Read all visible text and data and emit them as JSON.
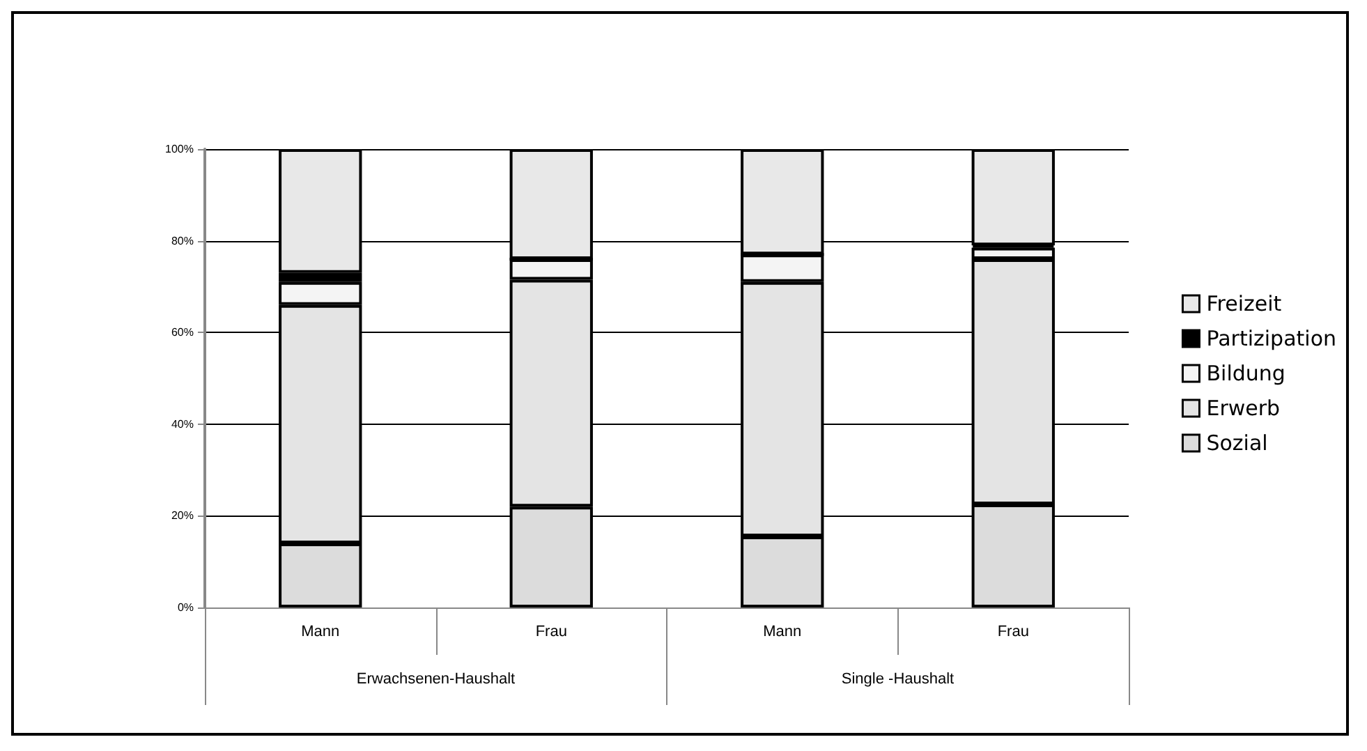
{
  "chart_data": {
    "type": "bar",
    "stacked": true,
    "categories": [
      "Mann",
      "Frau",
      "Mann",
      "Frau"
    ],
    "annotations": [
      "Erwachsenen-Haushalt",
      "Single -Haushalt"
    ],
    "series": [
      {
        "name": "Sozial",
        "color": "#dcdcdc",
        "values": [
          14,
          22,
          15.5,
          22.5
        ]
      },
      {
        "name": "Erwerb",
        "color": "#e4e4e4",
        "values": [
          52,
          49.5,
          55.5,
          53.5
        ]
      },
      {
        "name": "Bildung",
        "color": "#f4f4f4",
        "values": [
          5,
          4.5,
          6,
          2.5
        ]
      },
      {
        "name": "Partizipation",
        "color": "#000000",
        "values": [
          2,
          0,
          0,
          0.5
        ]
      },
      {
        "name": "Freizeit",
        "color": "#e8e8e8",
        "values": [
          27,
          24,
          23,
          21
        ]
      }
    ],
    "ylim": [
      0,
      100
    ],
    "yticks": [
      {
        "value": 0,
        "label": "0%"
      },
      {
        "value": 20,
        "label": "20%"
      },
      {
        "value": 40,
        "label": "40%"
      },
      {
        "value": 60,
        "label": "60%"
      },
      {
        "value": 80,
        "label": "80%"
      },
      {
        "value": 100,
        "label": "100%"
      }
    ],
    "grid": "y",
    "legend": "right"
  }
}
